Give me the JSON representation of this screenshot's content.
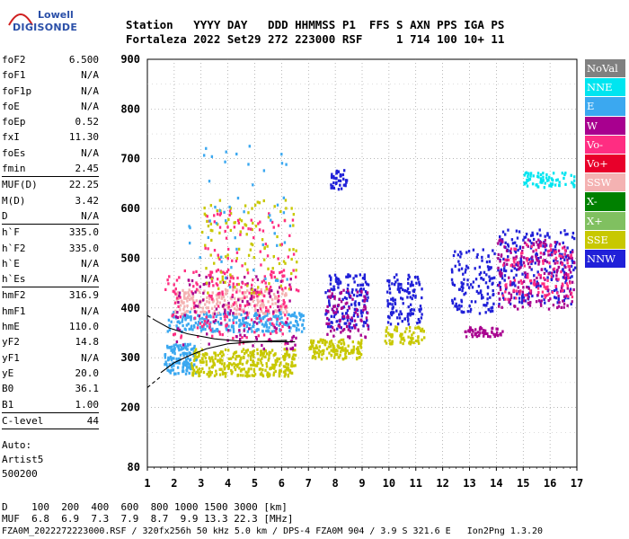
{
  "logo": {
    "line1": "Lowell",
    "line2": "DIGISONDE"
  },
  "header": {
    "line1": "Station   YYYY DAY   DDD HHMMSS P1  FFS S AXN PPS IGA PS",
    "line2": "Fortaleza 2022 Set29 272 223000 RSF     1 714 100 10+ 11"
  },
  "params": [
    {
      "group": [
        {
          "name": "foF2",
          "value": "6.500"
        },
        {
          "name": "foF1",
          "value": "N/A"
        },
        {
          "name": "foF1p",
          "value": "N/A"
        },
        {
          "name": "foE",
          "value": "N/A"
        },
        {
          "name": "foEp",
          "value": "0.52"
        },
        {
          "name": "fxI",
          "value": "11.30"
        },
        {
          "name": "foEs",
          "value": "N/A"
        },
        {
          "name": "fmin",
          "value": "2.45"
        }
      ]
    },
    {
      "group": [
        {
          "name": "MUF(D)",
          "value": "22.25"
        },
        {
          "name": "M(D)",
          "value": "3.42"
        },
        {
          "name": "D",
          "value": "N/A"
        }
      ]
    },
    {
      "group": [
        {
          "name": "h`F",
          "value": "335.0"
        },
        {
          "name": "h`F2",
          "value": "335.0"
        },
        {
          "name": "h`E",
          "value": "N/A"
        },
        {
          "name": "h`Es",
          "value": "N/A"
        }
      ]
    },
    {
      "group": [
        {
          "name": "hmF2",
          "value": "316.9"
        },
        {
          "name": "hmF1",
          "value": "N/A"
        },
        {
          "name": "hmE",
          "value": "110.0"
        },
        {
          "name": "yF2",
          "value": "14.8"
        },
        {
          "name": "yF1",
          "value": "N/A"
        },
        {
          "name": "yE",
          "value": "20.0"
        },
        {
          "name": "B0",
          "value": "36.1"
        },
        {
          "name": "B1",
          "value": "1.00"
        }
      ]
    },
    {
      "group": [
        {
          "name": "C-level",
          "value": "44"
        }
      ]
    }
  ],
  "auto": {
    "line1": "Auto:",
    "line2": "Artist5",
    "line3": "500200"
  },
  "legend": [
    {
      "label": "NoVal",
      "color": "#808080"
    },
    {
      "label": "NNE",
      "color": "#00e5f0"
    },
    {
      "label": "E",
      "color": "#3ba8f0"
    },
    {
      "label": "W",
      "color": "#a8008f"
    },
    {
      "label": "Vo-",
      "color": "#ff2d82"
    },
    {
      "label": "Vo+",
      "color": "#e8002a"
    },
    {
      "label": "SSW",
      "color": "#f4b2b2"
    },
    {
      "label": "X-",
      "color": "#008000"
    },
    {
      "label": "X+",
      "color": "#80c060"
    },
    {
      "label": "SSE",
      "color": "#c8c800"
    },
    {
      "label": "NNW",
      "color": "#2020d8"
    }
  ],
  "bottom": {
    "d_row": "D    100  200  400  600  800 1000 1500 3000 [km]",
    "muf_row": "MUF  6.8  6.9  7.3  7.9  8.7  9.9 13.3 22.3 [MHz]"
  },
  "footer": "FZA0M_2022272223000.RSF / 320fx256h 50 kHz 5.0 km / DPS-4 FZA0M 904 / 3.9 S 321.6 E   Ion2Png 1.3.20",
  "chart_data": {
    "type": "scatter",
    "xlim": [
      1,
      17
    ],
    "ylim": [
      80,
      900
    ],
    "x_ticks": [
      1,
      2,
      3,
      4,
      5,
      6,
      7,
      8,
      9,
      10,
      11,
      12,
      13,
      14,
      15,
      16,
      17
    ],
    "y_ticks": [
      80,
      200,
      300,
      400,
      500,
      600,
      700,
      800,
      900
    ],
    "grid": true,
    "clusters": [
      {
        "x": [
          1.6,
          2.8
        ],
        "y": [
          270,
          330
        ],
        "color": "#3ba8f0",
        "n": 140
      },
      {
        "x": [
          2.6,
          6.5
        ],
        "y": [
          265,
          320
        ],
        "color": "#c8c800",
        "n": 320
      },
      {
        "x": [
          7.0,
          9.0
        ],
        "y": [
          300,
          340
        ],
        "color": "#c8c800",
        "n": 140
      },
      {
        "x": [
          9.8,
          11.3
        ],
        "y": [
          330,
          365
        ],
        "color": "#c8c800",
        "n": 70
      },
      {
        "x": [
          1.7,
          6.8
        ],
        "y": [
          355,
          395
        ],
        "color": "#3ba8f0",
        "n": 260
      },
      {
        "x": [
          2.0,
          6.2
        ],
        "y": [
          390,
          440
        ],
        "color": "#f4b2b2",
        "n": 220
      },
      {
        "x": [
          1.6,
          6.2
        ],
        "y": [
          330,
          480
        ],
        "color": "#ff2d82",
        "n": 160
      },
      {
        "x": [
          2.0,
          6.5
        ],
        "y": [
          320,
          470
        ],
        "color": "#a8008f",
        "n": 120
      },
      {
        "x": [
          3.0,
          6.6
        ],
        "y": [
          430,
          620
        ],
        "color": "#c8c800",
        "n": 110
      },
      {
        "x": [
          3.0,
          6.6
        ],
        "y": [
          400,
          600
        ],
        "color": "#ff2d82",
        "n": 90
      },
      {
        "x": [
          7.6,
          9.2
        ],
        "y": [
          360,
          470
        ],
        "color": "#2020d8",
        "n": 160
      },
      {
        "x": [
          7.6,
          9.2
        ],
        "y": [
          340,
          440
        ],
        "color": "#a8008f",
        "n": 90
      },
      {
        "x": [
          9.9,
          11.2
        ],
        "y": [
          370,
          470
        ],
        "color": "#2020d8",
        "n": 120
      },
      {
        "x": [
          12.3,
          13.9
        ],
        "y": [
          390,
          520
        ],
        "color": "#2020d8",
        "n": 130
      },
      {
        "x": [
          12.8,
          14.2
        ],
        "y": [
          345,
          365
        ],
        "color": "#a8008f",
        "n": 50
      },
      {
        "x": [
          14.0,
          16.9
        ],
        "y": [
          410,
          560
        ],
        "color": "#2020d8",
        "n": 230
      },
      {
        "x": [
          14.0,
          16.9
        ],
        "y": [
          400,
          540
        ],
        "color": "#a8008f",
        "n": 190
      },
      {
        "x": [
          14.2,
          16.8
        ],
        "y": [
          420,
          530
        ],
        "color": "#ff2d82",
        "n": 110
      },
      {
        "x": [
          15.0,
          16.9
        ],
        "y": [
          645,
          675
        ],
        "color": "#00e5f0",
        "n": 70
      },
      {
        "x": [
          7.8,
          8.4
        ],
        "y": [
          640,
          680
        ],
        "color": "#2020d8",
        "n": 40
      },
      {
        "x": [
          2.5,
          6.5
        ],
        "y": [
          440,
          730
        ],
        "color": "#3ba8f0",
        "n": 50
      }
    ],
    "traces": [
      {
        "name": "",
        "x": [
          1.5,
          2.0,
          2.6,
          3.2,
          4.0,
          5.0,
          6.2
        ],
        "y": [
          270,
          290,
          305,
          318,
          328,
          332,
          335
        ],
        "style": "solid"
      },
      {
        "name": "",
        "x": [
          1.3,
          1.8,
          2.5,
          3.5,
          4.5,
          5.5,
          6.5
        ],
        "y": [
          375,
          360,
          348,
          338,
          333,
          332,
          332
        ],
        "style": "solid"
      },
      {
        "name": "",
        "x": [
          1.0,
          1.5
        ],
        "y": [
          240,
          262
        ],
        "style": "dashed"
      },
      {
        "name": "",
        "x": [
          1.0,
          1.3
        ],
        "y": [
          385,
          375
        ],
        "style": "dashed"
      }
    ]
  }
}
